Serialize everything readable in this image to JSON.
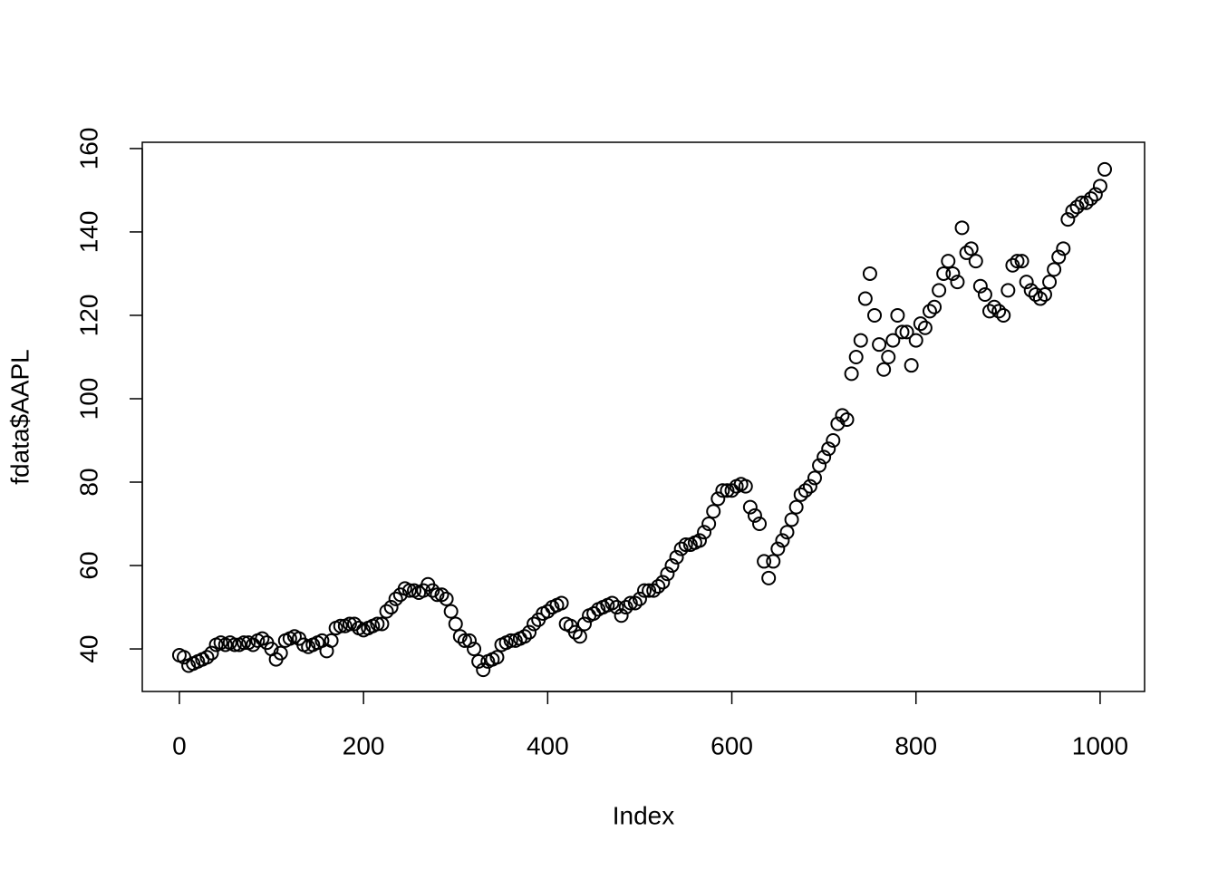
{
  "chart_data": {
    "type": "scatter",
    "xlabel": "Index",
    "ylabel": "fdata$AAPL",
    "xlim": [
      -40.3,
      1048.3
    ],
    "ylim": [
      29.8,
      161.5
    ],
    "xticks": [
      0,
      200,
      400,
      600,
      800,
      1000
    ],
    "yticks": [
      40,
      60,
      80,
      100,
      120,
      140,
      160
    ],
    "color": "#000000",
    "x": [
      0,
      5,
      10,
      15,
      20,
      25,
      30,
      35,
      40,
      45,
      50,
      55,
      60,
      65,
      70,
      75,
      80,
      85,
      90,
      95,
      100,
      105,
      110,
      115,
      120,
      125,
      130,
      135,
      140,
      145,
      150,
      155,
      160,
      165,
      170,
      175,
      180,
      185,
      190,
      195,
      200,
      205,
      210,
      215,
      220,
      225,
      230,
      235,
      240,
      245,
      250,
      255,
      260,
      265,
      270,
      275,
      280,
      285,
      290,
      295,
      300,
      305,
      310,
      315,
      320,
      325,
      330,
      335,
      340,
      345,
      350,
      355,
      360,
      365,
      370,
      375,
      380,
      385,
      390,
      395,
      400,
      405,
      410,
      415,
      420,
      425,
      430,
      435,
      440,
      445,
      450,
      455,
      460,
      465,
      470,
      475,
      480,
      485,
      490,
      495,
      500,
      505,
      510,
      515,
      520,
      525,
      530,
      535,
      540,
      545,
      550,
      555,
      560,
      565,
      570,
      575,
      580,
      585,
      590,
      595,
      600,
      605,
      610,
      615,
      620,
      625,
      630,
      635,
      640,
      645,
      650,
      655,
      660,
      665,
      670,
      675,
      680,
      685,
      690,
      695,
      700,
      705,
      710,
      715,
      720,
      725,
      730,
      735,
      740,
      745,
      750,
      755,
      760,
      765,
      770,
      775,
      780,
      785,
      790,
      795,
      800,
      805,
      810,
      815,
      820,
      825,
      830,
      835,
      840,
      845,
      850,
      855,
      860,
      865,
      870,
      875,
      880,
      885,
      890,
      895,
      900,
      905,
      910,
      915,
      920,
      925,
      930,
      935,
      940,
      945,
      950,
      955,
      960,
      965,
      970,
      975,
      980,
      985,
      990,
      995,
      1000,
      1005
    ],
    "values": [
      38.5,
      38,
      36,
      36.5,
      37,
      37.5,
      38,
      39,
      41,
      41.5,
      41,
      41.5,
      41,
      41,
      41.5,
      41.5,
      41,
      42,
      42.5,
      41.5,
      40,
      37.5,
      39,
      42,
      42.5,
      43,
      42.5,
      41,
      40.5,
      41,
      41.5,
      42,
      39.5,
      42,
      45,
      45.5,
      45.5,
      46,
      46,
      45,
      44.5,
      45,
      45.5,
      46,
      46,
      49,
      50,
      52,
      53,
      54.5,
      54,
      54,
      53.5,
      54,
      55.5,
      54,
      53,
      53,
      52,
      49,
      46,
      43,
      42,
      42,
      40,
      37,
      35,
      37,
      37.5,
      38,
      41,
      41.5,
      42,
      42,
      42.5,
      43,
      44,
      46,
      47,
      48.5,
      49,
      50,
      50.5,
      51,
      46,
      45.5,
      44,
      43,
      46,
      48,
      48.5,
      49.5,
      50,
      50.5,
      51,
      50,
      48,
      50,
      51,
      51,
      52,
      54,
      54,
      54,
      55,
      56,
      58,
      60,
      62,
      64,
      65,
      65,
      65.5,
      66,
      68,
      70,
      73,
      76,
      78,
      78,
      78,
      79,
      79.5,
      79,
      74,
      72,
      70,
      61,
      57,
      61,
      64,
      66,
      68,
      71,
      74,
      77,
      78,
      79,
      81,
      84,
      86,
      88,
      90,
      94,
      96,
      95,
      106,
      110,
      114,
      124,
      130,
      120,
      113,
      107,
      110,
      114,
      120,
      116,
      116,
      108,
      114,
      118,
      117,
      121,
      122,
      126,
      130,
      133,
      130,
      128,
      141,
      135,
      136,
      133,
      127,
      125,
      121,
      122,
      121,
      120,
      126,
      132,
      133,
      133,
      128,
      126,
      125,
      124,
      125,
      128,
      131,
      134,
      136,
      143,
      145,
      146,
      147,
      147,
      148,
      149,
      151,
      155
    ]
  }
}
